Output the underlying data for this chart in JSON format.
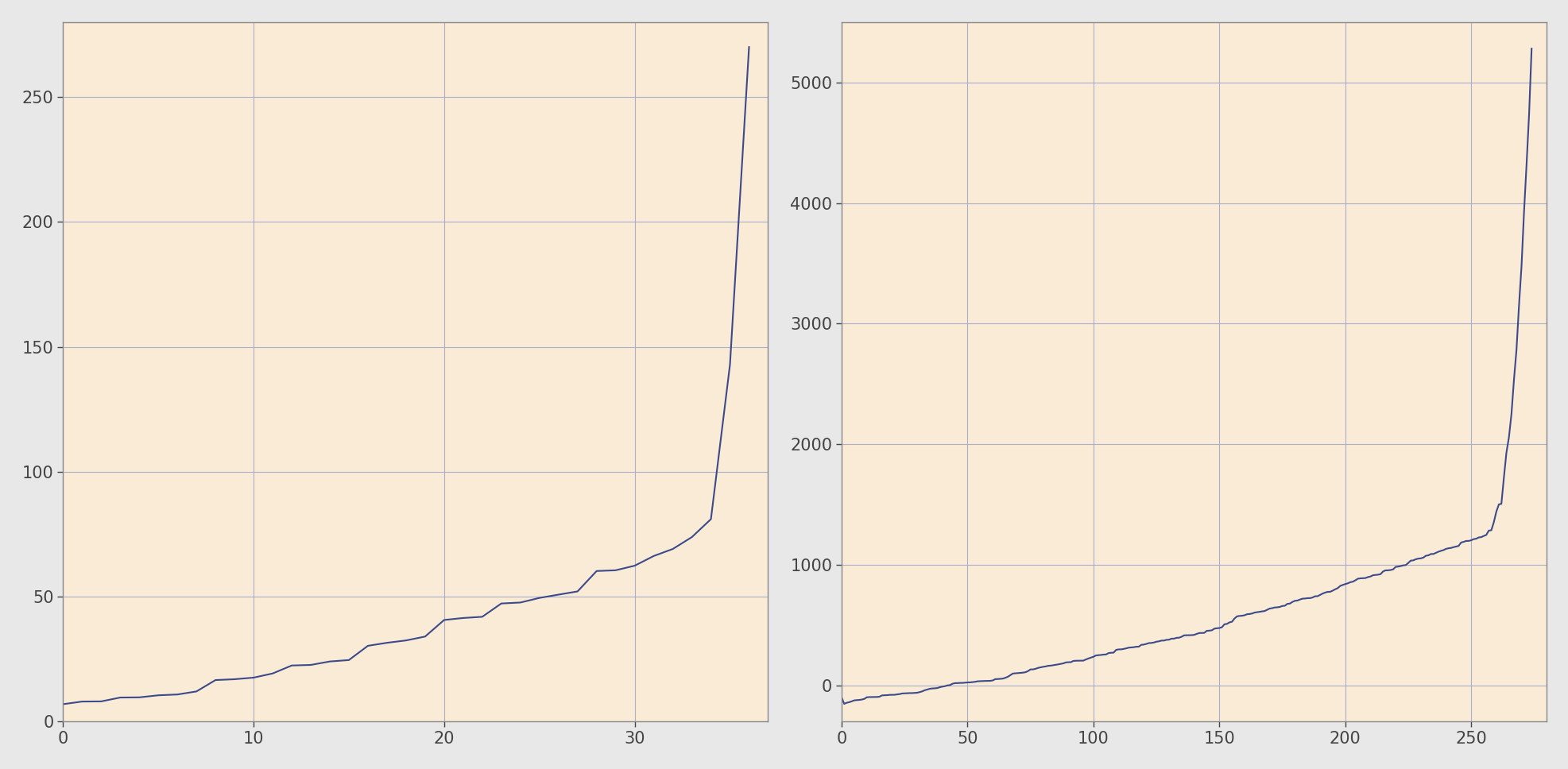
{
  "background_color": "#faebd7",
  "line_color": "#3d4a8a",
  "grid_color": "#aab0cc",
  "fig_background": "#e8e8e8",
  "plot1": {
    "n": 37,
    "x_start": 0,
    "x_end": 37,
    "y_min": 7,
    "y_max": 270,
    "knee": 33,
    "xlim": [
      0,
      37
    ],
    "ylim": [
      0,
      280
    ],
    "xticks": [
      0,
      10,
      20,
      30
    ],
    "yticks": [
      0,
      50,
      100,
      150,
      200,
      250
    ]
  },
  "plot2": {
    "n": 275,
    "x_start": 0,
    "x_end": 275,
    "y_min": -100,
    "y_max": 5280,
    "knee": 255,
    "xlim": [
      0,
      280
    ],
    "ylim": [
      -300,
      5500
    ],
    "xticks": [
      0,
      50,
      100,
      150,
      200,
      250
    ],
    "yticks": [
      0,
      1000,
      2000,
      3000,
      4000,
      5000
    ]
  }
}
